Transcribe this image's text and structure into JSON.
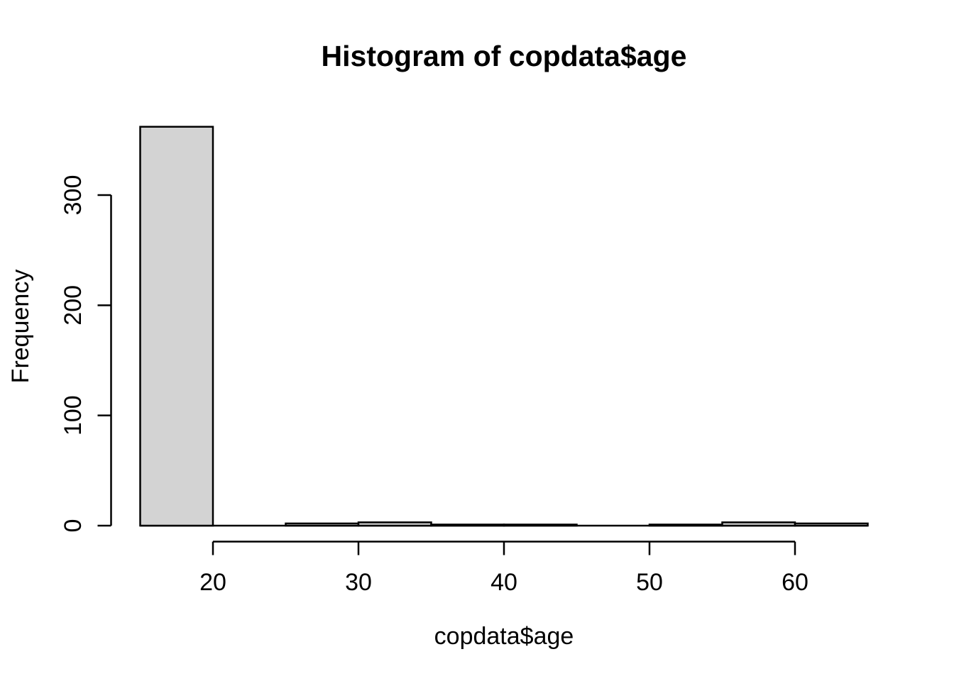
{
  "chart_data": {
    "type": "bar",
    "subtype": "histogram",
    "title": "Histogram of copdata$age",
    "xlabel": "copdata$age",
    "ylabel": "Frequency",
    "bin_edges": [
      15,
      20,
      25,
      30,
      35,
      40,
      45,
      50,
      55,
      60,
      65
    ],
    "counts": [
      362,
      0,
      2,
      3,
      1,
      1,
      0,
      1,
      3,
      2
    ],
    "x_ticks": [
      20,
      30,
      40,
      50,
      60
    ],
    "y_ticks": [
      0,
      100,
      200,
      300
    ],
    "xlim": [
      13,
      67
    ],
    "ylim": [
      0,
      377
    ],
    "legend": "none",
    "grid": false,
    "bar_fill": "#d3d3d3",
    "axis_color": "#000000",
    "background": "#ffffff"
  }
}
